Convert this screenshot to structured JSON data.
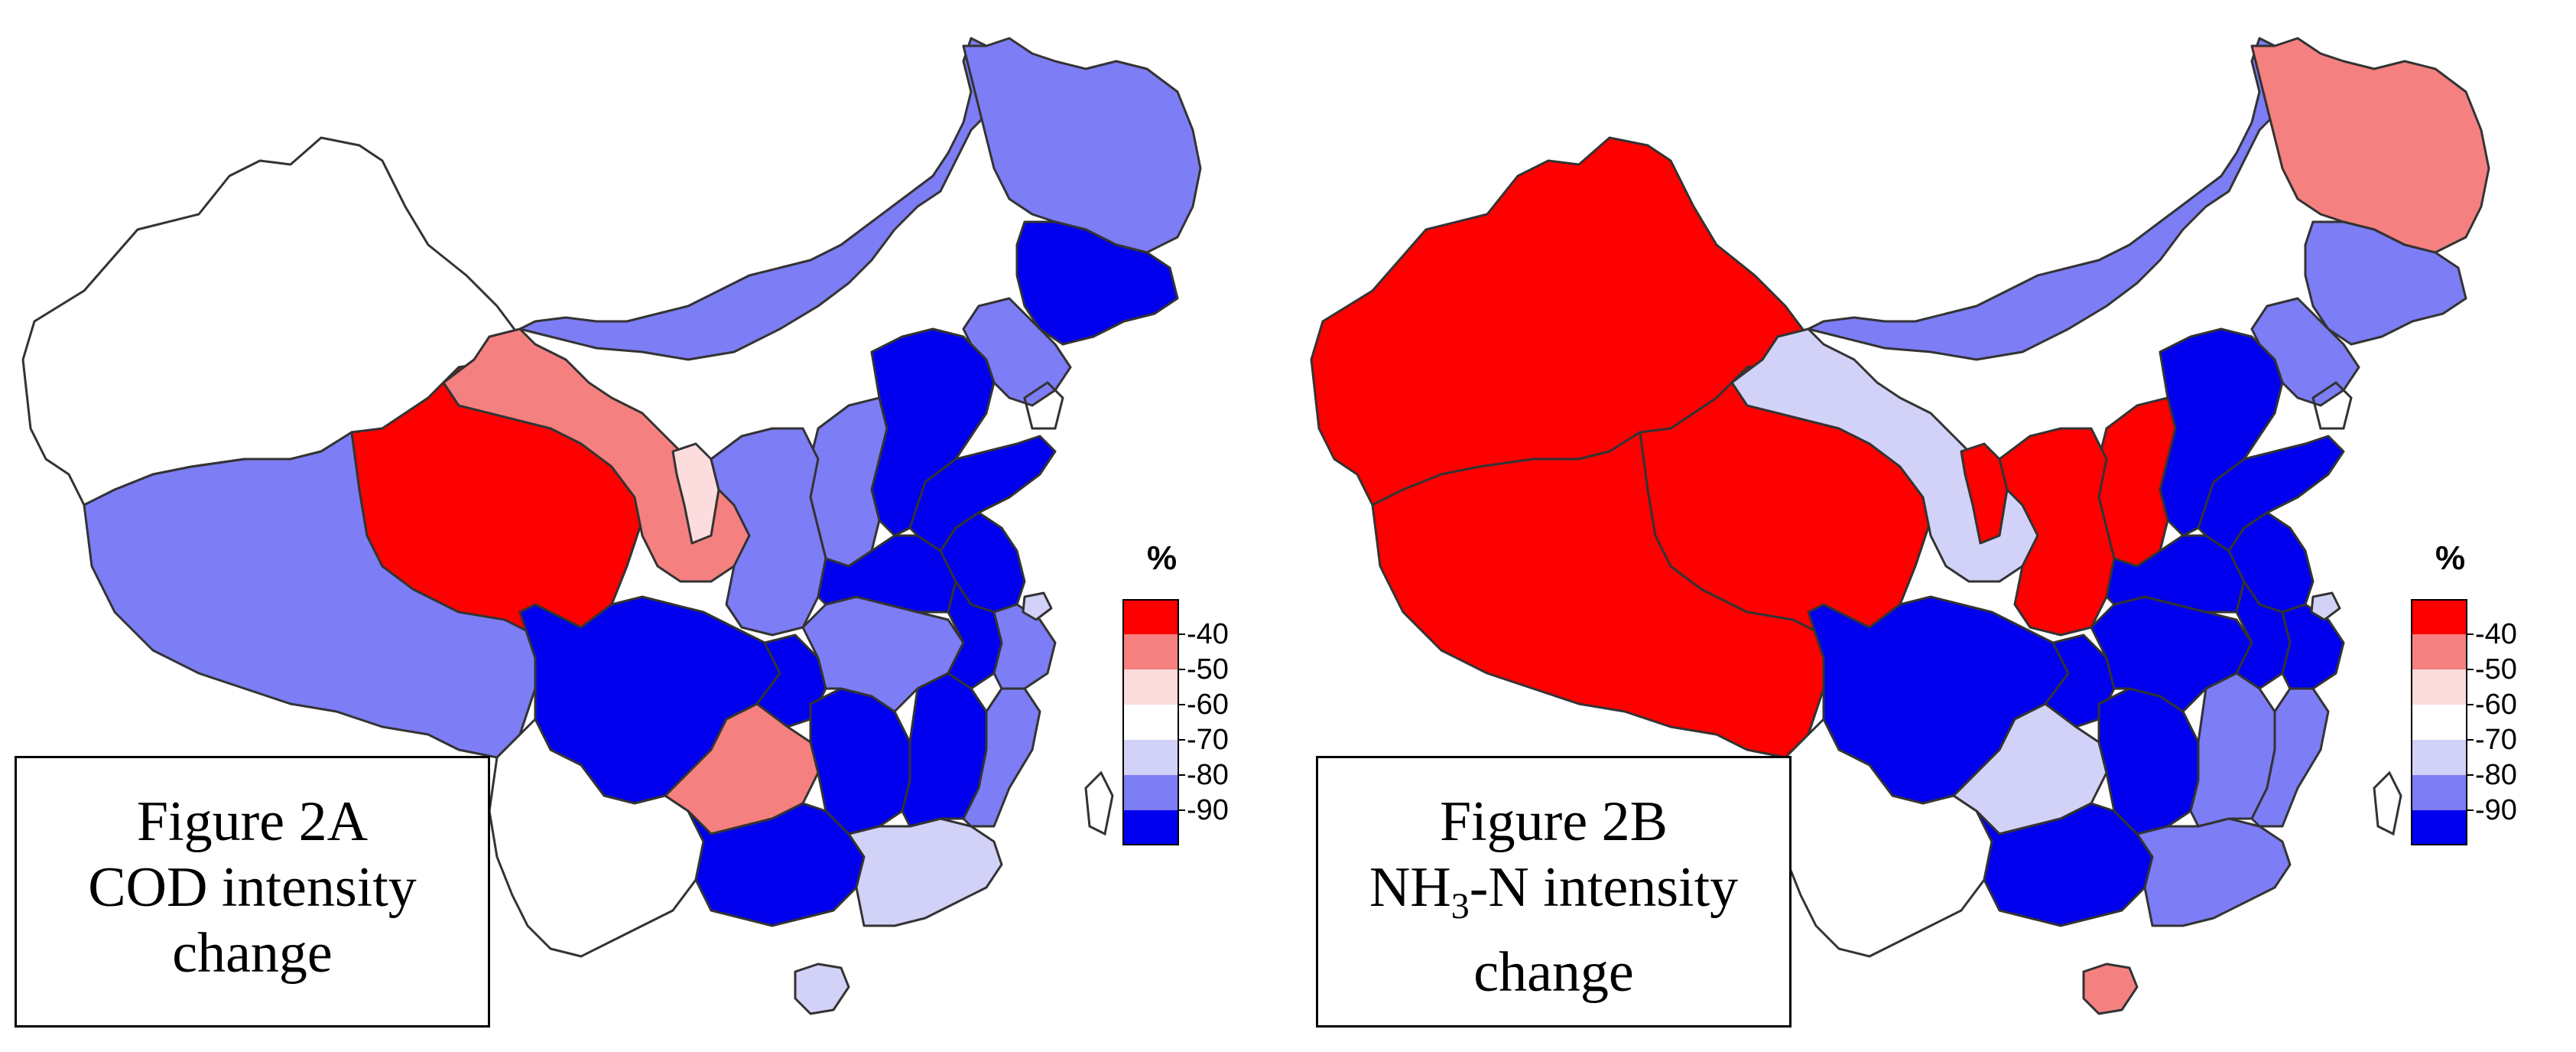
{
  "colors": {
    "outline": "#333333",
    "class_-40": "#ff0000",
    "class_-50": "#f58080",
    "class_-60": "#fcdcdc",
    "class_-70": "#ffffff",
    "class_-80": "#d2d2f8",
    "class_-90": "#7d7df5",
    "class_-100": "#0000ee"
  },
  "legend": {
    "unit": "%",
    "classes": [
      "class_-40",
      "class_-50",
      "class_-60",
      "class_-70",
      "class_-80",
      "class_-90",
      "class_-100"
    ],
    "labels": [
      "-40",
      "-50",
      "-60",
      "-70",
      "-80",
      "-90"
    ]
  },
  "figures": [
    {
      "caption": [
        "Figure 2A",
        "COD intensity",
        "change"
      ],
      "regions": {
        "xinjiang": "class_-70",
        "tibet": "class_-90",
        "qinghai": "class_-40",
        "gansu": "class_-50",
        "ningxia": "class_-60",
        "inner_mongolia": "class_-90",
        "heilongjiang": "class_-90",
        "jilin": "class_-100",
        "liaoning": "class_-90",
        "beijing_hebei_tianjin": "class_-100",
        "shanxi": "class_-90",
        "shaanxi": "class_-90",
        "sichuan": "class_-100",
        "chongqing": "class_-100",
        "yunnan": "class_-70",
        "guizhou": "class_-50",
        "guangxi": "class_-100",
        "guangdong": "class_-80",
        "hainan": "class_-80",
        "hunan": "class_-100",
        "hubei": "class_-90",
        "henan": "class_-100",
        "shandong": "class_-100",
        "jiangsu": "class_-100",
        "anhui": "class_-100",
        "jiangxi": "class_-100",
        "zhejiang": "class_-90",
        "fujian": "class_-90",
        "shanghai": "class_-80"
      }
    },
    {
      "caption": [
        "Figure 2B",
        "NH3-N intensity",
        "change"
      ],
      "caption_parts": {
        "pre": "NH",
        "sub": "3",
        "post": "-N intensity"
      },
      "regions": {
        "xinjiang": "class_-40",
        "tibet": "class_-40",
        "qinghai": "class_-40",
        "gansu": "class_-80",
        "ningxia": "class_-40",
        "inner_mongolia": "class_-90",
        "heilongjiang": "class_-50",
        "jilin": "class_-90",
        "liaoning": "class_-90",
        "beijing_hebei_tianjin": "class_-100",
        "shanxi": "class_-40",
        "shaanxi": "class_-40",
        "sichuan": "class_-100",
        "chongqing": "class_-100",
        "yunnan": "class_-70",
        "guizhou": "class_-80",
        "guangxi": "class_-100",
        "guangdong": "class_-90",
        "hainan": "class_-50",
        "hunan": "class_-100",
        "hubei": "class_-100",
        "henan": "class_-100",
        "shandong": "class_-100",
        "jiangsu": "class_-100",
        "anhui": "class_-100",
        "jiangxi": "class_-90",
        "zhejiang": "class_-100",
        "fujian": "class_-90",
        "shanghai": "class_-80"
      }
    }
  ]
}
